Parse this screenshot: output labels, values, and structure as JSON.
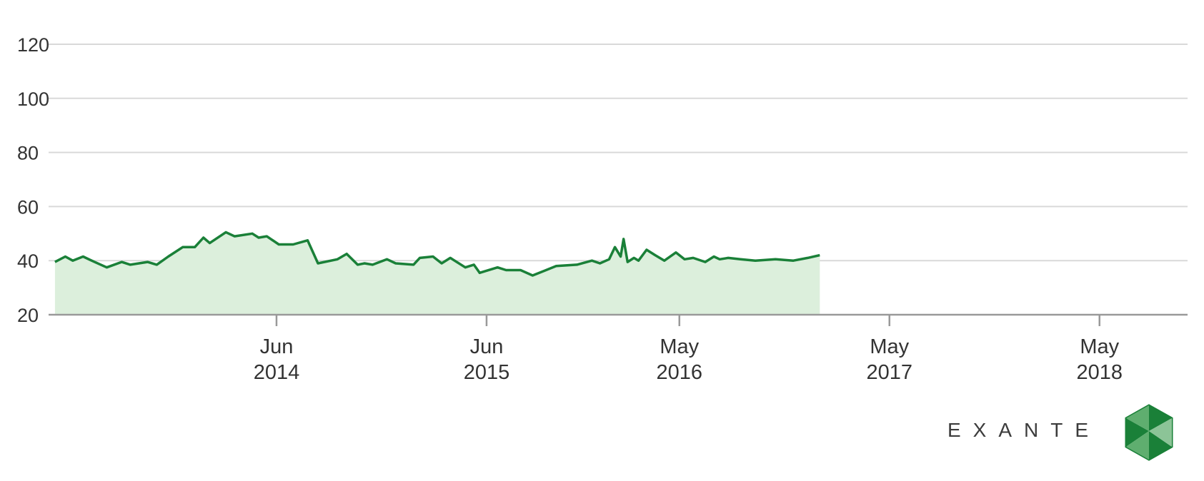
{
  "chart_data": {
    "type": "area",
    "x_unit": "date",
    "y_ticks": [
      20,
      40,
      60,
      80,
      100,
      120
    ],
    "ylim": [
      20,
      120
    ],
    "xlim": [
      "2013-05-01",
      "2018-10-01"
    ],
    "x_ticks": [
      {
        "date": "2014-06-01",
        "line1": "Jun",
        "line2": "2014"
      },
      {
        "date": "2015-06-01",
        "line1": "Jun",
        "line2": "2015"
      },
      {
        "date": "2016-05-01",
        "line1": "May",
        "line2": "2016"
      },
      {
        "date": "2017-05-01",
        "line1": "May",
        "line2": "2017"
      },
      {
        "date": "2018-05-01",
        "line1": "May",
        "line2": "2018"
      }
    ],
    "grid": true,
    "colors": {
      "line": "#1a8038",
      "fill": "#dcefdc",
      "grid": "#d9d9d9",
      "axis": "#999999"
    },
    "series": [
      {
        "points": [
          [
            "2013-05-12",
            39.5
          ],
          [
            "2013-05-30",
            41.5
          ],
          [
            "2013-06-12",
            40.0
          ],
          [
            "2013-06-30",
            41.5
          ],
          [
            "2013-07-20",
            39.5
          ],
          [
            "2013-08-10",
            37.5
          ],
          [
            "2013-09-05",
            39.5
          ],
          [
            "2013-09-20",
            38.5
          ],
          [
            "2013-10-20",
            39.5
          ],
          [
            "2013-11-05",
            38.5
          ],
          [
            "2013-11-25",
            41.5
          ],
          [
            "2013-12-20",
            45.0
          ],
          [
            "2014-01-10",
            45.0
          ],
          [
            "2014-01-25",
            48.5
          ],
          [
            "2014-02-05",
            46.5
          ],
          [
            "2014-03-05",
            50.5
          ],
          [
            "2014-03-20",
            49.0
          ],
          [
            "2014-04-20",
            50.0
          ],
          [
            "2014-05-01",
            48.5
          ],
          [
            "2014-05-15",
            49.0
          ],
          [
            "2014-06-05",
            46.0
          ],
          [
            "2014-06-30",
            46.0
          ],
          [
            "2014-07-25",
            47.5
          ],
          [
            "2014-08-12",
            39.0
          ],
          [
            "2014-09-15",
            40.5
          ],
          [
            "2014-10-01",
            42.5
          ],
          [
            "2014-10-20",
            38.5
          ],
          [
            "2014-11-01",
            39.0
          ],
          [
            "2014-11-15",
            38.5
          ],
          [
            "2014-12-10",
            40.5
          ],
          [
            "2014-12-25",
            39.0
          ],
          [
            "2015-01-25",
            38.5
          ],
          [
            "2015-02-05",
            41.0
          ],
          [
            "2015-02-28",
            41.5
          ],
          [
            "2015-03-15",
            39.0
          ],
          [
            "2015-03-30",
            41.0
          ],
          [
            "2015-04-25",
            37.5
          ],
          [
            "2015-05-10",
            38.5
          ],
          [
            "2015-05-20",
            35.5
          ],
          [
            "2015-06-20",
            37.5
          ],
          [
            "2015-07-05",
            36.5
          ],
          [
            "2015-07-30",
            36.5
          ],
          [
            "2015-08-20",
            34.5
          ],
          [
            "2015-09-30",
            38.0
          ],
          [
            "2015-11-05",
            38.5
          ],
          [
            "2015-12-01",
            40.0
          ],
          [
            "2015-12-15",
            39.0
          ],
          [
            "2016-01-20",
            41.5
          ],
          [
            "2016-02-01",
            39.5
          ],
          [
            "2016-02-12",
            41.0
          ],
          [
            "2016-02-20",
            40.0
          ],
          [
            "2016-03-05",
            44.0
          ],
          [
            "2016-03-20",
            42.0
          ],
          [
            "2016-04-05",
            40.0
          ],
          [
            "2016-04-25",
            43.0
          ],
          [
            "2016-05-10",
            40.5
          ],
          [
            "2016-05-25",
            41.0
          ],
          [
            "2016-06-15",
            39.5
          ],
          [
            "2016-06-30",
            41.5
          ],
          [
            "2016-07-10",
            40.5
          ],
          [
            "2016-07-25",
            41.0
          ],
          [
            "2016-08-15",
            40.5
          ],
          [
            "2016-09-10",
            40.0
          ],
          [
            "2016-10-15",
            40.5
          ],
          [
            "2016-11-15",
            40.0
          ],
          [
            "2016-12-10",
            41.0
          ],
          [
            "2016-12-31",
            42.0
          ],
          [
            "2015-12-31",
            40.5
          ],
          [
            "2016-01-10",
            45.0
          ],
          [
            "2016-01-25",
            48.0
          ]
        ]
      }
    ]
  },
  "brand": {
    "name": "EXANTE",
    "logo_icon": "exante-hexagon-logo-icon"
  }
}
